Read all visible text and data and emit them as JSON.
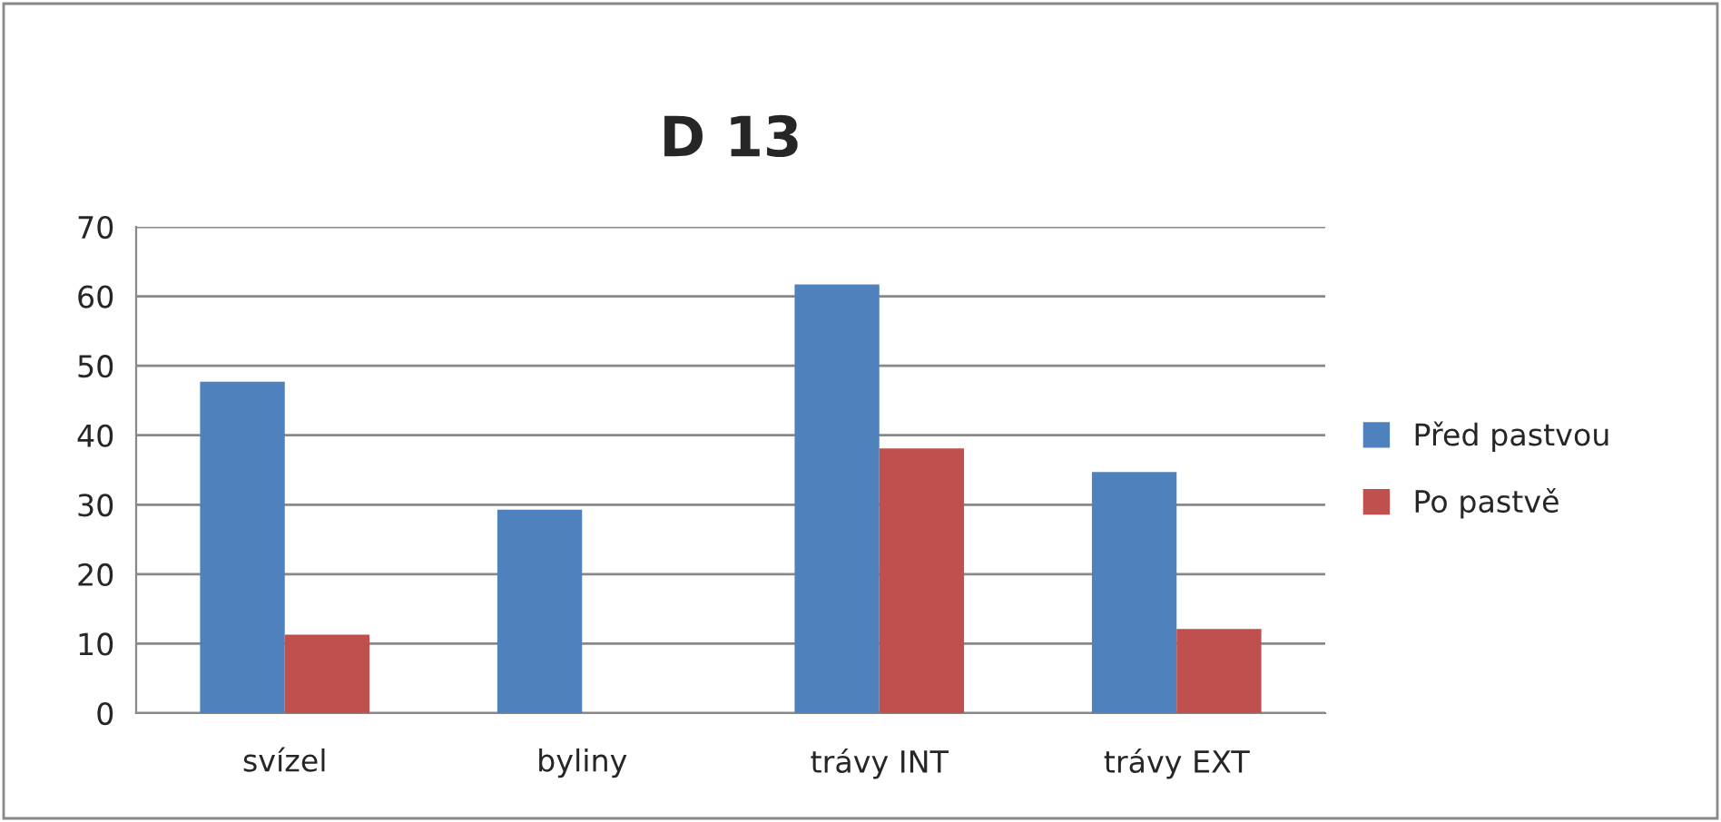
{
  "chart_data": {
    "type": "bar",
    "title": "D 13",
    "categories": [
      "svízel",
      "byliny",
      "trávy INT",
      "trávy EXT"
    ],
    "series": [
      {
        "name": "Před pastvou",
        "color": "#4f81bd",
        "values": [
          47.7,
          29.3,
          61.7,
          34.7
        ]
      },
      {
        "name": "Po pastvě",
        "color": "#c0504d",
        "values": [
          11.3,
          null,
          38.1,
          12.1
        ]
      }
    ],
    "ylim": [
      0,
      70
    ],
    "yticks": [
      0,
      10,
      20,
      30,
      40,
      50,
      60,
      70
    ],
    "grid": "y",
    "legend": "right"
  }
}
